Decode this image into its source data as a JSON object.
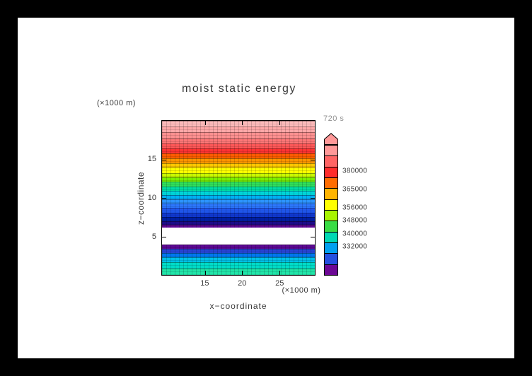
{
  "palette": {
    "frame_bg": "#000000",
    "canvas_bg": "#ffffff",
    "text": "#3a3a3a",
    "muted_text": "#909090"
  },
  "chart_data": {
    "type": "filled-contour",
    "title": "moist static energy",
    "time_label": "720 s",
    "xlabel": "x−coordinate",
    "ylabel": "z−coordinate",
    "x_units_label": "(×1000 m)",
    "y_units_label": "(×1000 m)",
    "x_ticks": [
      15,
      20,
      25
    ],
    "y_ticks": [
      5,
      10,
      15
    ],
    "x_range": [
      9.2,
      29.8
    ],
    "y_range": [
      0,
      20
    ],
    "grid": "cell-mesh",
    "legend_position": "right-colorbar-with-top-arrow",
    "field_note": "horizontally uniform layered field: ~383000 at domain top decreasing with height to below 332000 (white band) near z≈4.5–6.5 km, then increasing again toward the surface",
    "stripes": [
      {
        "color": "#ffbcbc",
        "weight": 8
      },
      {
        "color": "#ffa8a8",
        "weight": 8
      },
      {
        "color": "#ff9090",
        "weight": 8
      },
      {
        "color": "#ff7878",
        "weight": 7
      },
      {
        "color": "#ff5858",
        "weight": 7
      },
      {
        "color": "#ff3434",
        "weight": 7
      },
      {
        "color": "#ff5c00",
        "weight": 7
      },
      {
        "color": "#ff9400",
        "weight": 6
      },
      {
        "color": "#ffc800",
        "weight": 6
      },
      {
        "color": "#ffff00",
        "weight": 8
      },
      {
        "color": "#c8f800",
        "weight": 6
      },
      {
        "color": "#7cf000",
        "weight": 6
      },
      {
        "color": "#30e05c",
        "weight": 6
      },
      {
        "color": "#00dca4",
        "weight": 6
      },
      {
        "color": "#00d8dc",
        "weight": 6
      },
      {
        "color": "#00b0f4",
        "weight": 6
      },
      {
        "color": "#2c94ff",
        "weight": 6
      },
      {
        "color": "#2c78ff",
        "weight": 6
      },
      {
        "color": "#2058f0",
        "weight": 6
      },
      {
        "color": "#1038d0",
        "weight": 6
      },
      {
        "color": "#0020a4",
        "weight": 6
      },
      {
        "color": "#1c0c88",
        "weight": 5
      },
      {
        "color": "#5c0894",
        "weight": 4
      },
      {
        "color": "#ffffff",
        "weight": 23
      },
      {
        "color": "#5c0894",
        "weight": 6
      },
      {
        "color": "#2844d4",
        "weight": 6
      },
      {
        "color": "#0078f0",
        "weight": 6
      },
      {
        "color": "#00c0e8",
        "weight": 6
      },
      {
        "color": "#00dcc8",
        "weight": 9
      },
      {
        "color": "#20e4a8",
        "weight": 9
      }
    ],
    "colorbar": {
      "labels": [
        "380000",
        "365000",
        "356000",
        "348000",
        "340000",
        "332000"
      ],
      "label_offsets_pct": [
        20,
        34,
        48,
        58,
        68,
        78
      ],
      "arrow_color": "#ff9898",
      "blocks": [
        "#ff9898",
        "#ff6464",
        "#ff2c2c",
        "#ff6c00",
        "#ffb400",
        "#ffff00",
        "#a8f400",
        "#38dc44",
        "#00d8b4",
        "#00a0f0",
        "#2450e0",
        "#6c0894"
      ]
    }
  }
}
